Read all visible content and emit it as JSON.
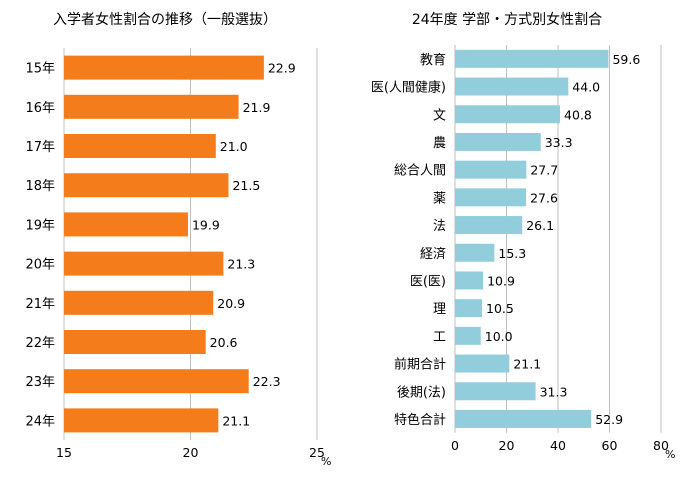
{
  "chart_data": [
    {
      "type": "bar",
      "orientation": "horizontal",
      "title": "入学者女性割合の推移（一般選抜）",
      "categories": [
        "15年",
        "16年",
        "17年",
        "18年",
        "19年",
        "20年",
        "21年",
        "22年",
        "23年",
        "24年"
      ],
      "values": [
        22.9,
        21.9,
        21.0,
        21.5,
        19.9,
        21.3,
        20.9,
        20.6,
        22.3,
        21.1
      ],
      "value_labels": [
        "22.9",
        "21.9",
        "21.0",
        "21.5",
        "19.9",
        "21.3",
        "20.9",
        "20.6",
        "22.3",
        "21.1"
      ],
      "xlim": [
        15,
        25
      ],
      "x_ticks": [
        15,
        20,
        25
      ],
      "x_tick_labels": [
        "15",
        "20",
        "25"
      ],
      "unit": "%",
      "grid": true,
      "bar_color": "#f47c1a"
    },
    {
      "type": "bar",
      "orientation": "horizontal",
      "title": "24年度 学部・方式別女性割合",
      "categories": [
        "教育",
        "医(人間健康)",
        "文",
        "農",
        "総合人間",
        "薬",
        "法",
        "経済",
        "医(医)",
        "理",
        "工",
        "前期合計",
        "後期(法)",
        "特色合計"
      ],
      "values": [
        59.6,
        44.0,
        40.8,
        33.3,
        27.7,
        27.6,
        26.1,
        15.3,
        10.9,
        10.5,
        10.0,
        21.1,
        31.3,
        52.9
      ],
      "value_labels": [
        "59.6",
        "44.0",
        "40.8",
        "33.3",
        "27.7",
        "27.6",
        "26.1",
        "15.3",
        "10.9",
        "10.5",
        "10.0",
        "21.1",
        "31.3",
        "52.9"
      ],
      "xlim": [
        0,
        80
      ],
      "x_ticks": [
        0,
        20,
        40,
        60,
        80
      ],
      "x_tick_labels": [
        "0",
        "20",
        "40",
        "60",
        "80"
      ],
      "unit": "%",
      "grid": true,
      "bar_color": "#92cddc"
    }
  ]
}
